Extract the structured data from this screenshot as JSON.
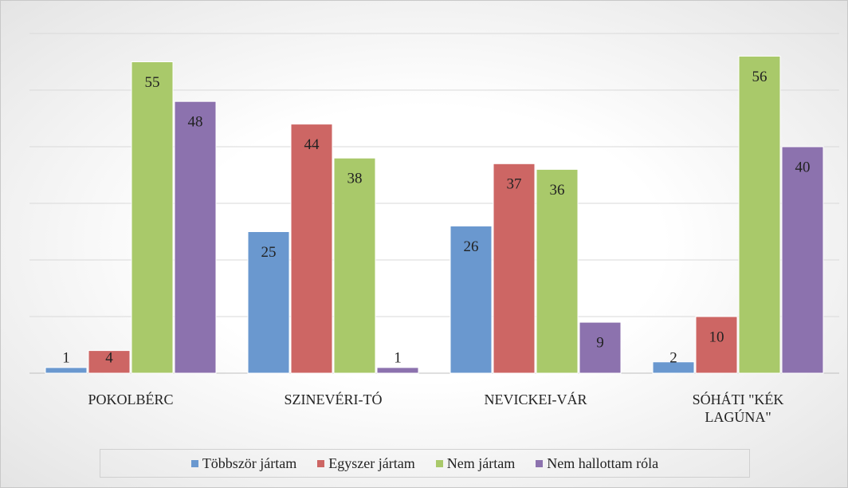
{
  "chart_data": {
    "type": "bar",
    "categories": [
      "POKOLBÉRC",
      "SZINEVÉRI-TÓ",
      "NEVICKEI-VÁR",
      "SÓHÁTI \"KÉK LAGÚNA\""
    ],
    "series": [
      {
        "name": "Többször jártam",
        "color": "#6a98cf",
        "values": [
          1,
          25,
          26,
          2
        ]
      },
      {
        "name": "Egyszer jártam",
        "color": "#cd6664",
        "values": [
          4,
          44,
          37,
          10
        ]
      },
      {
        "name": "Nem jártam",
        "color": "#a9c96a",
        "values": [
          55,
          38,
          36,
          56
        ]
      },
      {
        "name": "Nem hallottam róla",
        "color": "#8c72ae",
        "values": [
          48,
          1,
          9,
          40
        ]
      }
    ],
    "ylim": [
      0,
      60
    ],
    "yticks": [
      0,
      10,
      20,
      30,
      40,
      50,
      60
    ],
    "grid": true,
    "legend": "bottom"
  }
}
